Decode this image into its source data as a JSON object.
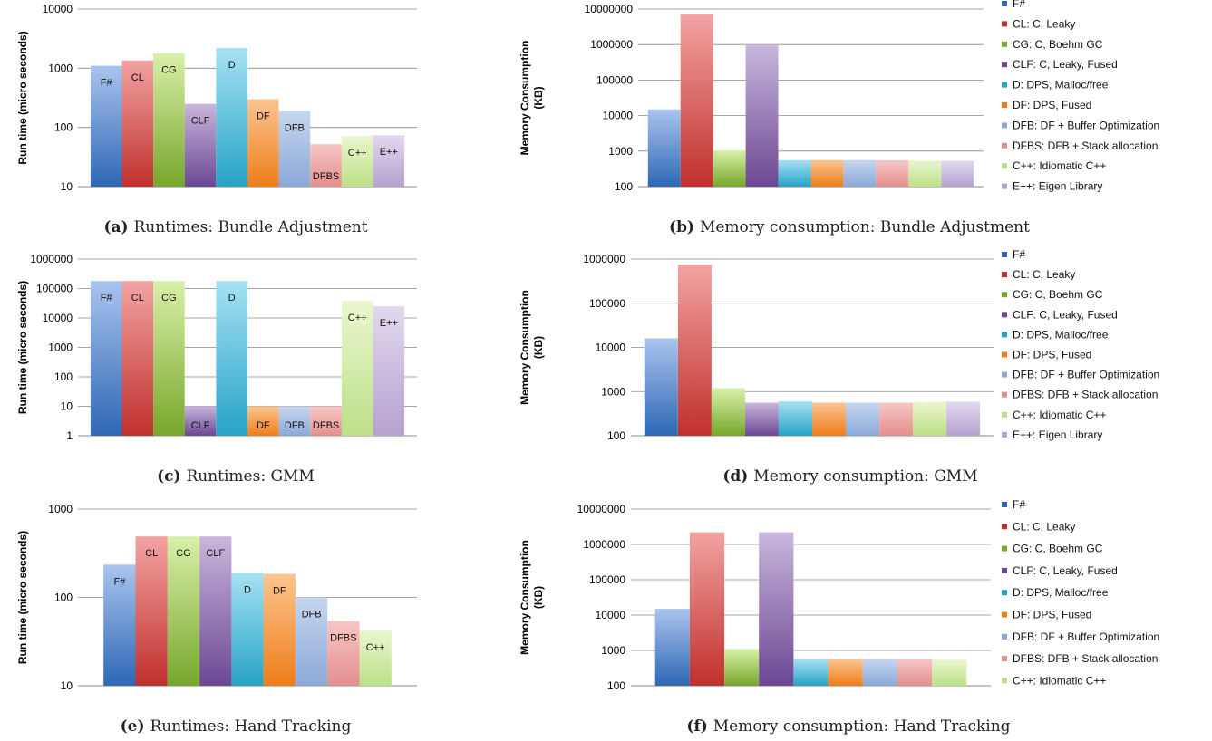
{
  "palette": {
    "F#": {
      "light": "#a9c4ee",
      "dark": "#2e67b5"
    },
    "CL": {
      "light": "#f2a3a2",
      "dark": "#c0302c"
    },
    "CG": {
      "light": "#d9f0a9",
      "dark": "#77a72b"
    },
    "CLF": {
      "light": "#c8b6dc",
      "dark": "#6c4793"
    },
    "D": {
      "light": "#a6e1f4",
      "dark": "#26a3c5"
    },
    "DF": {
      "light": "#fbc590",
      "dark": "#ef7d19"
    },
    "DFB": {
      "light": "#c6d6ef",
      "dark": "#8ba9d8"
    },
    "DFBS": {
      "light": "#f7c6c5",
      "dark": "#e38f8d"
    },
    "C++": {
      "light": "#eaf6cf",
      "dark": "#bce088"
    },
    "E++": {
      "light": "#e2d8ee",
      "dark": "#b6a2d0"
    }
  },
  "chart_data": [
    {
      "id": "a",
      "type": "bar",
      "caption_letter": "(a)",
      "caption": "Runtimes: Bundle Adjustment",
      "ylabel": "Run time (micro seconds)",
      "yscale": "log",
      "ylim": [
        10,
        10000
      ],
      "yticks": [
        "10",
        "100",
        "1000",
        "10000"
      ],
      "categories": [
        "F#",
        "CL",
        "CG",
        "CLF",
        "D",
        "DF",
        "DFB",
        "DFBS",
        "C++",
        "E++"
      ],
      "values": [
        1100,
        1350,
        1800,
        250,
        2200,
        300,
        190,
        52,
        72,
        74
      ],
      "labels": [
        "F#",
        "CL",
        "CG",
        "CLF",
        "D",
        "DF",
        "DFB",
        "DFBS",
        "C++",
        "E++"
      ],
      "label_positions": [
        "top",
        "top",
        "top",
        "top",
        "top",
        "top",
        "top",
        "bottom",
        "top",
        "top"
      ],
      "legend": null
    },
    {
      "id": "b",
      "type": "bar",
      "caption_letter": "(b)",
      "caption": "Memory consumption: Bundle Adjustment",
      "ylabel": "Memory Consumption (KB)",
      "yscale": "log",
      "ylim": [
        100,
        10000000
      ],
      "yticks": [
        "100",
        "1000",
        "10000",
        "100000",
        "1000000",
        "10000000"
      ],
      "categories": [
        "F#",
        "CL",
        "CG",
        "CLF",
        "D",
        "DF",
        "DFB",
        "DFBS",
        "C++",
        "E++"
      ],
      "values": [
        15000,
        7000000,
        1050,
        950000,
        560,
        560,
        560,
        550,
        540,
        530
      ],
      "labels": [],
      "legend": [
        "F#",
        "CL: C, Leaky",
        "CG: C, Boehm GC",
        "CLF: C, Leaky, Fused",
        "D: DPS, Malloc/free",
        "DF: DPS, Fused",
        "DFB: DF + Buffer Optimization",
        "DFBS: DFB + Stack allocation",
        "C++: Idiomatic C++",
        "E++: Eigen Library"
      ],
      "legend_position": "right"
    },
    {
      "id": "c",
      "type": "bar",
      "caption_letter": "(c)",
      "caption": "Runtimes: GMM",
      "ylabel": "Run time (micro seconds)",
      "yscale": "log",
      "ylim": [
        1,
        1000000
      ],
      "yticks": [
        "1",
        "10",
        "100",
        "1000",
        "10000",
        "100000",
        "1000000"
      ],
      "categories": [
        "F#",
        "CL",
        "CG",
        "CLF",
        "D",
        "DF",
        "DFB",
        "DFBS",
        "C++",
        "E++"
      ],
      "values": [
        180000,
        180000,
        180000,
        10,
        180000,
        10,
        10,
        10,
        38000,
        25000
      ],
      "labels": [
        "F#",
        "CL",
        "CG",
        "CLF",
        "D",
        "DF",
        "DFB",
        "DFBS",
        "C++",
        "E++"
      ],
      "label_positions": [
        "top",
        "top",
        "top",
        "bottom",
        "top",
        "bottom",
        "bottom",
        "bottom",
        "top",
        "top"
      ],
      "legend": null
    },
    {
      "id": "d",
      "type": "bar",
      "caption_letter": "(d)",
      "caption": "Memory consumption: GMM",
      "ylabel": "Memory Consumption (KB)",
      "yscale": "log",
      "ylim": [
        100,
        1000000
      ],
      "yticks": [
        "100",
        "1000",
        "10000",
        "100000",
        "1000000"
      ],
      "categories": [
        "F#",
        "CL",
        "CG",
        "CLF",
        "D",
        "DF",
        "DFB",
        "DFBS",
        "C++",
        "E++"
      ],
      "values": [
        16000,
        750000,
        1200,
        560,
        600,
        560,
        560,
        560,
        590,
        590
      ],
      "labels": [],
      "legend": [
        "F#",
        "CL: C, Leaky",
        "CG: C, Boehm GC",
        "CLF: C, Leaky, Fused",
        "D: DPS, Malloc/free",
        "DF: DPS, Fused",
        "DFB: DF + Buffer Optimization",
        "DFBS: DFB + Stack allocation",
        "C++: Idiomatic C++",
        "E++: Eigen Library"
      ],
      "legend_position": "right"
    },
    {
      "id": "e",
      "type": "bar",
      "caption_letter": "(e)",
      "caption": "Runtimes: Hand Tracking",
      "ylabel": "Run time (micro seconds)",
      "yscale": "log",
      "ylim": [
        10,
        1000
      ],
      "yticks": [
        "10",
        "100",
        "1000"
      ],
      "categories": [
        "F#",
        "CL",
        "CG",
        "CLF",
        "D",
        "DF",
        "DFB",
        "DFBS",
        "C++"
      ],
      "values": [
        235,
        490,
        490,
        490,
        190,
        185,
        100,
        54,
        42
      ],
      "labels": [
        "F#",
        "CL",
        "CG",
        "CLF",
        "D",
        "DF",
        "DFB",
        "DFBS",
        "C++"
      ],
      "label_positions": [
        "top",
        "top",
        "top",
        "top",
        "top",
        "top",
        "top",
        "top",
        "top"
      ],
      "legend": null
    },
    {
      "id": "f",
      "type": "bar",
      "caption_letter": "(f)",
      "caption": "Memory consumption: Hand Tracking",
      "ylabel": "Memory Consumption (KB)",
      "yscale": "log",
      "ylim": [
        100,
        10000000
      ],
      "yticks": [
        "100",
        "1000",
        "10000",
        "100000",
        "1000000",
        "10000000"
      ],
      "categories": [
        "F#",
        "CL",
        "CG",
        "CLF",
        "D",
        "DF",
        "DFB",
        "DFBS",
        "C++"
      ],
      "values": [
        15000,
        2200000,
        1100,
        2200000,
        560,
        560,
        560,
        560,
        540
      ],
      "labels": [],
      "legend": [
        "F#",
        "CL: C, Leaky",
        "CG: C, Boehm GC",
        "CLF: C, Leaky, Fused",
        "D: DPS, Malloc/free",
        "DF: DPS, Fused",
        "DFB: DF + Buffer Optimization",
        "DFBS: DFB + Stack allocation",
        "C++: Idiomatic C++"
      ],
      "legend_position": "right"
    }
  ]
}
